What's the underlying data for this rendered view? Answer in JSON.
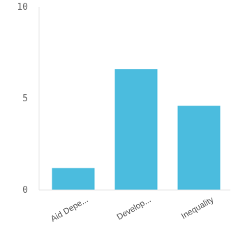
{
  "chart_data": {
    "type": "bar",
    "categories": [
      "Aid Depe...",
      "Develop...",
      "Inequality"
    ],
    "values": [
      1.2,
      6.6,
      4.6
    ],
    "ylim": [
      0,
      10
    ],
    "yticks": [
      0,
      5,
      10
    ],
    "grid": false,
    "colors": {
      "bar": "#4bbcde",
      "axis": "#e6e6e6",
      "tick_text": "#666666"
    }
  }
}
